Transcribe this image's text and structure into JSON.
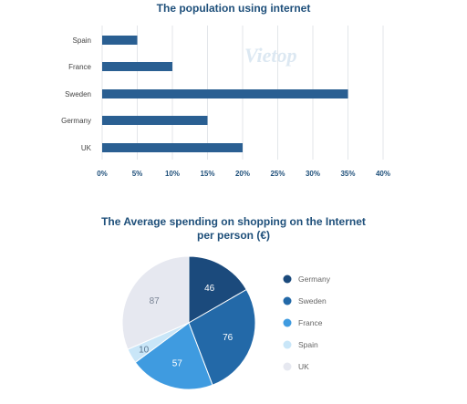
{
  "watermark": "Vietop",
  "chart_data": [
    {
      "type": "bar",
      "orientation": "horizontal",
      "title": "The population using internet",
      "categories": [
        "Spain",
        "France",
        "Sweden",
        "Germany",
        "UK"
      ],
      "values": [
        5,
        10,
        35,
        15,
        20
      ],
      "xlim": [
        0,
        40
      ],
      "ticks": [
        "0%",
        "5%",
        "10%",
        "15%",
        "20%",
        "25%",
        "30%",
        "35%",
        "40%"
      ],
      "grid": true,
      "bar_color": "#2a5f92"
    },
    {
      "type": "pie",
      "title_lines": [
        "The Average spending on shopping on the Internet",
        "per person (€)"
      ],
      "slices": [
        {
          "label": "Germany",
          "value": 46,
          "color": "#1b4a7c",
          "text_color": "#ffffff"
        },
        {
          "label": "Sweden",
          "value": 76,
          "color": "#2369a8",
          "text_color": "#ffffff"
        },
        {
          "label": "France",
          "value": 57,
          "color": "#3f9be0",
          "text_color": "#ffffff"
        },
        {
          "label": "Spain",
          "value": 10,
          "color": "#c9e6f8",
          "text_color": "#5a7690"
        },
        {
          "label": "UK",
          "value": 87,
          "color": "#e6e8f0",
          "text_color": "#7a8495"
        }
      ],
      "legend_position": "right"
    }
  ]
}
